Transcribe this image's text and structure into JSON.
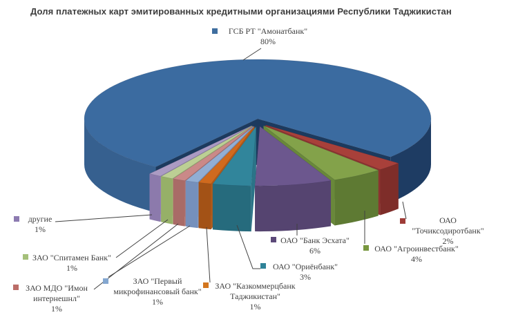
{
  "title": "Доля платежных карт эмитированных кредитными организациями Республики Таджикистан",
  "chart_data": {
    "type": "pie",
    "is_3d": true,
    "exploded": true,
    "title": "Доля платежных карт эмитированных кредитными организациями Республики Таджикистан",
    "unit": "%",
    "legend_position": "callout-labels",
    "slices": [
      {
        "key": "amonat",
        "label": "ГСБ РТ \"Амонатбанк\"",
        "value": 80,
        "pct_label": "80%",
        "lines": [
          "ГСБ РТ \"Амонатбанк\"",
          "80%"
        ],
        "colors": {
          "top": "#3b6ba0",
          "wall": "#36608f",
          "wall2": "#1e3c63",
          "cut": "#1c3a5e",
          "marker": "#3f6e9f"
        }
      },
      {
        "key": "tojik",
        "label": "ОАО \"Точиксодиротбанк\"",
        "value": 2,
        "pct_label": "2%",
        "lines": [
          "ОАО",
          "\"Точиксодиротбанк\"",
          "2%"
        ],
        "colors": {
          "top": "#a8403a",
          "wall": "#7e2d29",
          "cut": "#8c3330",
          "marker": "#9e3b37"
        }
      },
      {
        "key": "agro",
        "label": "ОАО \"Агроинвестбанк\"",
        "value": 4,
        "pct_label": "4%",
        "lines": [
          "ОАО \"Агроинвестбанк\"",
          "4%"
        ],
        "colors": {
          "top": "#83a24a",
          "wall": "#5e7a33",
          "cut": "#69883a",
          "marker": "#78973f"
        }
      },
      {
        "key": "eskhata",
        "label": "ОАО \"Банк Эсхата\"",
        "value": 6,
        "pct_label": "6%",
        "lines": [
          "ОАО \"Банк Эсхата\"",
          "6%"
        ],
        "colors": {
          "top": "#6c578e",
          "wall": "#554470",
          "cut": "#5c497a",
          "marker": "#5c4979"
        }
      },
      {
        "key": "orien",
        "label": "ОАО \"Ориёнбанк\"",
        "value": 3,
        "pct_label": "3%",
        "lines": [
          "ОАО \"Ориёнбанк\"",
          "3%"
        ],
        "colors": {
          "top": "#31859b",
          "wall": "#266b7d",
          "cut": "#2b7488",
          "marker": "#2f8398"
        }
      },
      {
        "key": "kazkom",
        "label": "ЗАО \"Казкоммерцбанк Таджикистан\"",
        "value": 1,
        "pct_label": "1%",
        "lines": [
          "ЗАО \"Казкоммерцбанк",
          "Таджикистан\"",
          "1%"
        ],
        "colors": {
          "top": "#d06a1e",
          "wall": "#a35216",
          "cut": "#b25a19",
          "marker": "#d3761f"
        }
      },
      {
        "key": "pmb",
        "label": "ЗАО \"Первый микрофинансовый банк\"",
        "value": 1,
        "pct_label": "1%",
        "lines": [
          "ЗАО \"Первый",
          "микрофинансовый банк\"",
          "1%"
        ],
        "colors": {
          "top": "#91aed4",
          "wall": "#7590bc",
          "cut": "#7e9ac5",
          "marker": "#84a7d0"
        }
      },
      {
        "key": "imon",
        "label": "ЗАО МДО \"Имон интернешнл\"",
        "value": 1,
        "pct_label": "1%",
        "lines": [
          "ЗАО МДО \"Имон",
          "интернешнл\"",
          "1%"
        ],
        "colors": {
          "top": "#ca8988",
          "wall": "#a96b67",
          "cut": "#b27471",
          "marker": "#bb6d68"
        }
      },
      {
        "key": "spitamen",
        "label": "ЗАО \"Спитамен Банк\"",
        "value": 1,
        "pct_label": "1%",
        "lines": [
          "ЗАО \"Спитамен Банк\"",
          "1%"
        ],
        "colors": {
          "top": "#bccf94",
          "wall": "#96b068",
          "cut": "#a1bb73",
          "marker": "#a5c07a"
        }
      },
      {
        "key": "others",
        "label": "другие",
        "value": 1,
        "pct_label": "1%",
        "lines": [
          "другие",
          "1%"
        ],
        "colors": {
          "top": "#ab9bc3",
          "wall": "#8c7aac",
          "cut": "#9684b4",
          "marker": "#8d7bb1"
        }
      }
    ]
  }
}
